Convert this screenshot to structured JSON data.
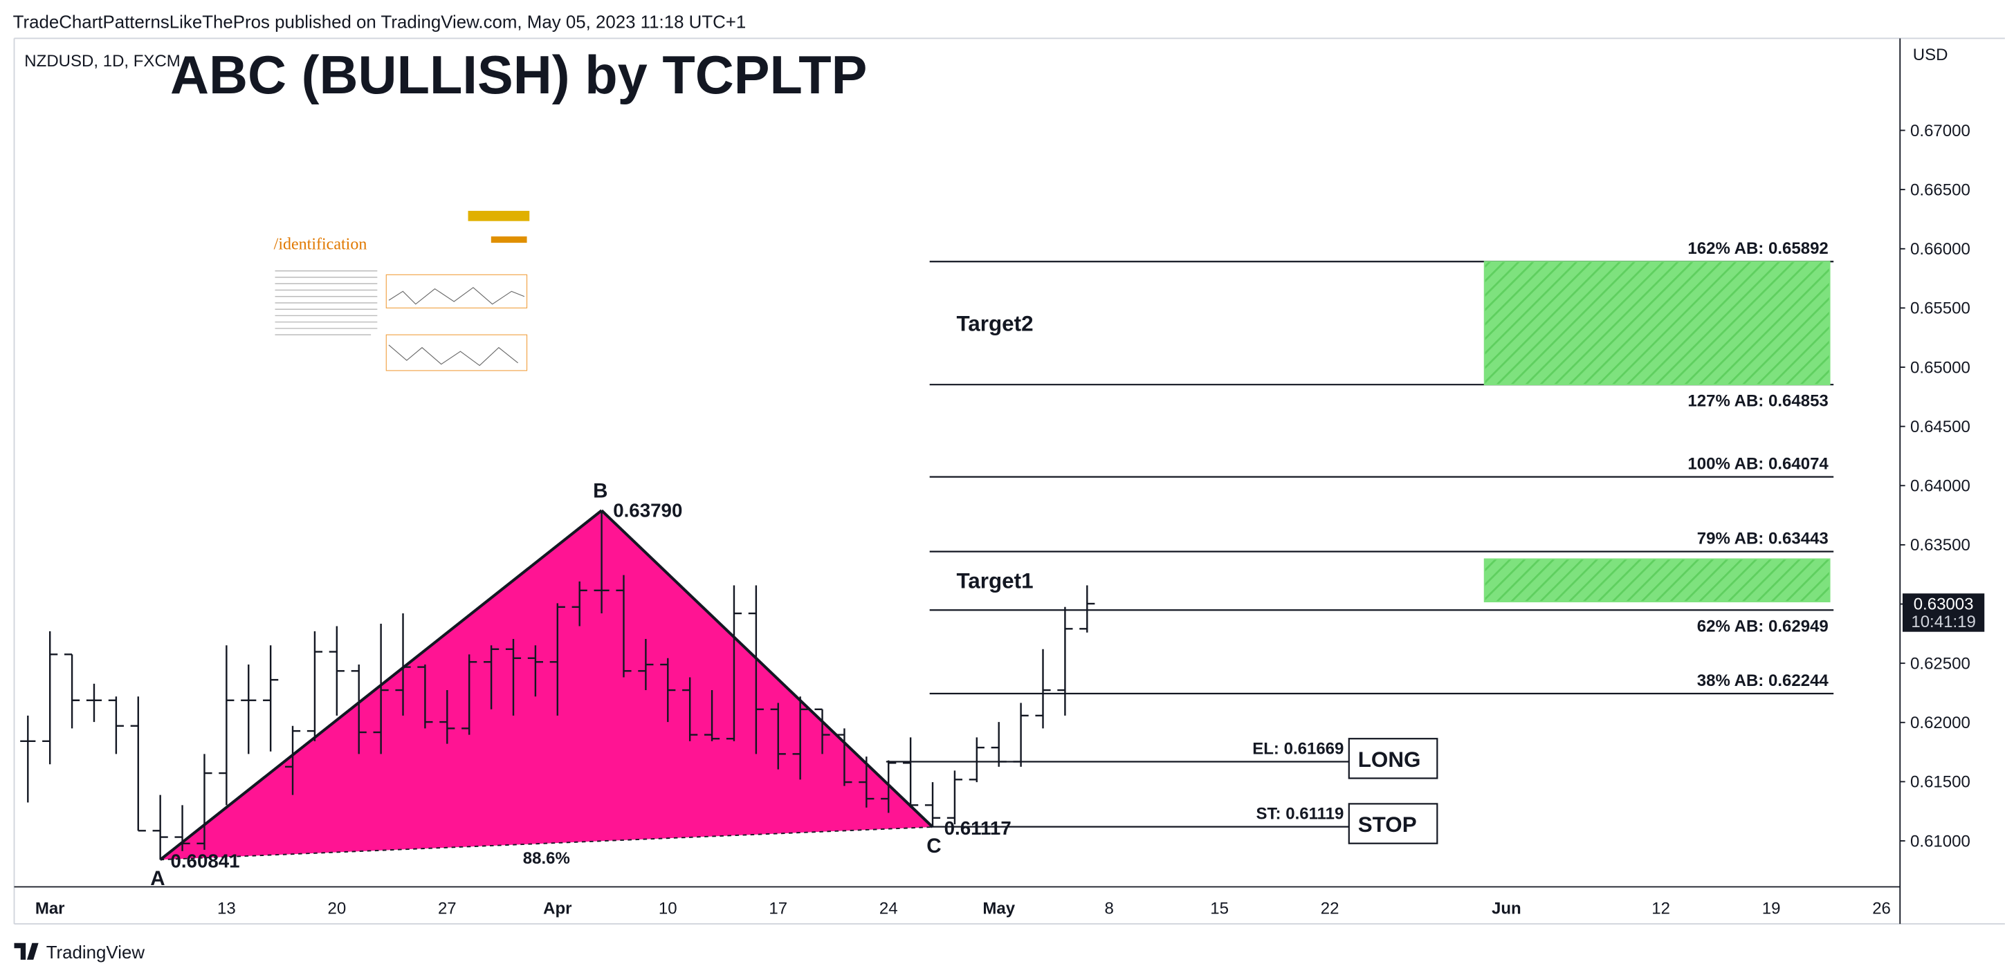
{
  "header": "TradeChartPatternsLikeThePros published on TradingView.com, May 05, 2023 11:18 UTC+1",
  "footer_logo": "TradingView",
  "inset": {
    "heading": "/identification"
  },
  "chart_data": {
    "type": "ohlc",
    "symbol": "NZDUSD, 1D, FXCM",
    "title": "ABC (BULLISH) by TCPLTP",
    "currency": "USD",
    "color": "#131722",
    "categories": [
      null,
      "Mar",
      null,
      null,
      null,
      null,
      null,
      null,
      null,
      "13",
      null,
      null,
      null,
      null,
      "20",
      null,
      null,
      null,
      null,
      "27",
      null,
      null,
      null,
      null,
      "Apr",
      null,
      null,
      null,
      null,
      "10",
      null,
      null,
      null,
      null,
      "17",
      null,
      null,
      null,
      null,
      "24",
      null,
      null,
      null,
      null,
      "May",
      null,
      null,
      null,
      null,
      "8",
      null,
      null,
      null,
      null,
      "15",
      null,
      null,
      null,
      null,
      "22",
      null,
      null,
      null,
      null,
      null,
      null,
      null,
      "Jun",
      null,
      null,
      null,
      null,
      null,
      null,
      "12",
      null,
      null,
      null,
      null,
      "19",
      null,
      null,
      null,
      null,
      "26"
    ],
    "open": [
      0.61842,
      0.61842,
      0.62575,
      0.62187,
      0.62187,
      0.61971,
      0.61086,
      0.61032,
      0.60978,
      0.61572,
      0.62187,
      0.62187,
      0.61626,
      0.61928,
      0.62597,
      0.62435,
      0.61917,
      0.62273,
      0.62468,
      0.62004,
      0.6195,
      0.62511,
      0.62619,
      0.62543,
      0.62511,
      0.62975,
      0.63115,
      0.63115,
      0.62435,
      0.62489,
      0.62273,
      0.61896,
      0.61863,
      0.62921,
      0.62111,
      0.61734,
      0.62111,
      0.61896,
      0.61496,
      0.61356,
      0.61658,
      0.61302,
      0.61194,
      0.61518,
      0.61788,
      0.61669,
      0.62058,
      0.62273,
      0.62791,
      null,
      null,
      null,
      null,
      null,
      null,
      null,
      null,
      null,
      null,
      null,
      null,
      null,
      null,
      null,
      null,
      null,
      null,
      null,
      null,
      null,
      null,
      null,
      null,
      null,
      null,
      null,
      null,
      null,
      null,
      null,
      null,
      null,
      null,
      null,
      null
    ],
    "high": [
      0.62058,
      0.6277,
      0.62575,
      0.62327,
      0.62219,
      0.62219,
      0.61388,
      0.61302,
      0.61734,
      0.62651,
      0.62489,
      0.62651,
      0.61971,
      0.6277,
      0.62813,
      0.62489,
      0.62834,
      0.62921,
      0.62489,
      0.62273,
      0.62575,
      0.62651,
      0.62705,
      0.62651,
      0.63007,
      0.63191,
      0.6379,
      0.63245,
      0.62705,
      0.62543,
      0.62381,
      0.62273,
      0.63158,
      0.63158,
      0.62165,
      0.62219,
      0.62111,
      0.6195,
      0.61712,
      0.6168,
      0.61874,
      0.61496,
      0.61594,
      0.61874,
      0.62004,
      0.62165,
      0.62619,
      0.62975,
      0.63158,
      null,
      null,
      null,
      null,
      null,
      null,
      null,
      null,
      null,
      null,
      null,
      null,
      null,
      null,
      null,
      null,
      null,
      null,
      null,
      null,
      null,
      null,
      null,
      null,
      null,
      null,
      null,
      null,
      null,
      null,
      null,
      null,
      null,
      null,
      null,
      null
    ],
    "low": [
      0.61324,
      0.61647,
      0.6195,
      0.62004,
      0.61734,
      0.61086,
      0.60841,
      0.60914,
      0.60924,
      0.61302,
      0.61734,
      0.61755,
      0.61388,
      0.61842,
      0.62058,
      0.61734,
      0.61734,
      0.62058,
      0.6195,
      0.6182,
      0.61896,
      0.62111,
      0.62058,
      0.62219,
      0.62058,
      0.62813,
      0.62921,
      0.62381,
      0.62273,
      0.62004,
      0.61842,
      0.61842,
      0.61842,
      0.61734,
      0.61604,
      0.61518,
      0.61734,
      0.61464,
      0.61281,
      0.61237,
      0.61281,
      0.61117,
      0.6114,
      0.61496,
      0.61626,
      0.61626,
      0.6195,
      0.62058,
      0.62759,
      null,
      null,
      null,
      null,
      null,
      null,
      null,
      null,
      null,
      null,
      null,
      null,
      null,
      null,
      null,
      null,
      null,
      null,
      null,
      null,
      null,
      null,
      null,
      null,
      null,
      null,
      null,
      null,
      null,
      null,
      null,
      null,
      null,
      null,
      null,
      null
    ],
    "close": [
      0.61842,
      0.62575,
      0.62187,
      0.62187,
      0.61971,
      0.61086,
      0.61032,
      0.60978,
      0.61572,
      0.62187,
      0.62187,
      0.6236,
      0.61928,
      0.62597,
      0.62435,
      0.61917,
      0.62273,
      0.62468,
      0.62004,
      0.6195,
      0.62511,
      0.62619,
      0.62543,
      0.62511,
      0.62975,
      0.63115,
      0.63115,
      0.62435,
      0.62489,
      0.62273,
      0.61896,
      0.61863,
      0.62921,
      0.62111,
      0.61734,
      0.62111,
      0.61896,
      0.61496,
      0.61356,
      0.61658,
      0.61302,
      0.61194,
      0.61518,
      0.61788,
      0.61669,
      0.62058,
      0.62273,
      0.62791,
      0.63003,
      null,
      null,
      null,
      null,
      null,
      null,
      null,
      null,
      null,
      null,
      null,
      null,
      null,
      null,
      null,
      null,
      null,
      null,
      null,
      null,
      null,
      null,
      null,
      null,
      null,
      null,
      null,
      null,
      null,
      null,
      null,
      null,
      null,
      null,
      null,
      null
    ],
    "ylim": [
      0.60612,
      0.67777
    ],
    "yticks": [
      {
        "value": 0.61,
        "label": "0.61000"
      },
      {
        "value": 0.615,
        "label": "0.61500"
      },
      {
        "value": 0.62,
        "label": "0.62000"
      },
      {
        "value": 0.625,
        "label": "0.62500"
      },
      {
        "value": 0.63,
        "label": "0.63000"
      },
      {
        "value": 0.635,
        "label": "0.63500"
      },
      {
        "value": 0.64,
        "label": "0.64000"
      },
      {
        "value": 0.645,
        "label": "0.64500"
      },
      {
        "value": 0.65,
        "label": "0.65000"
      },
      {
        "value": 0.655,
        "label": "0.65500"
      },
      {
        "value": 0.66,
        "label": "0.66000"
      },
      {
        "value": 0.665,
        "label": "0.66500"
      },
      {
        "value": 0.67,
        "label": "0.67000"
      }
    ],
    "last_price": 0.63003,
    "countdown": "10:41:19",
    "pattern": {
      "points": [
        "A",
        "B",
        "C"
      ],
      "values": [
        0.60841,
        0.6379,
        0.61117
      ],
      "value_labels": [
        "0.60841",
        "0.63790",
        "0.61117"
      ],
      "retracement": "88.6%",
      "color": "#ff1493"
    },
    "levels": [
      {
        "label": "162% AB: 0.65892",
        "value": 0.65892
      },
      {
        "label": "127% AB: 0.64853",
        "value": 0.64853
      },
      {
        "label": "100% AB: 0.64074",
        "value": 0.64074
      },
      {
        "label": "79% AB: 0.63443",
        "value": 0.63443
      },
      {
        "label": "62% AB: 0.62949",
        "value": 0.62949
      },
      {
        "label": "38% AB: 0.62244",
        "value": 0.62244
      }
    ],
    "targets": [
      {
        "name": "Target2",
        "top": 0.65892,
        "bottom": 0.64853
      },
      {
        "name": "Target1",
        "top": 0.6338,
        "bottom": 0.6302
      }
    ],
    "target_color": "#7ee27e",
    "orders": [
      {
        "label": "EL: 0.61669",
        "value": 0.61669,
        "side": "LONG"
      },
      {
        "label": "ST: 0.61119",
        "value": 0.61119,
        "side": "STOP"
      }
    ]
  }
}
